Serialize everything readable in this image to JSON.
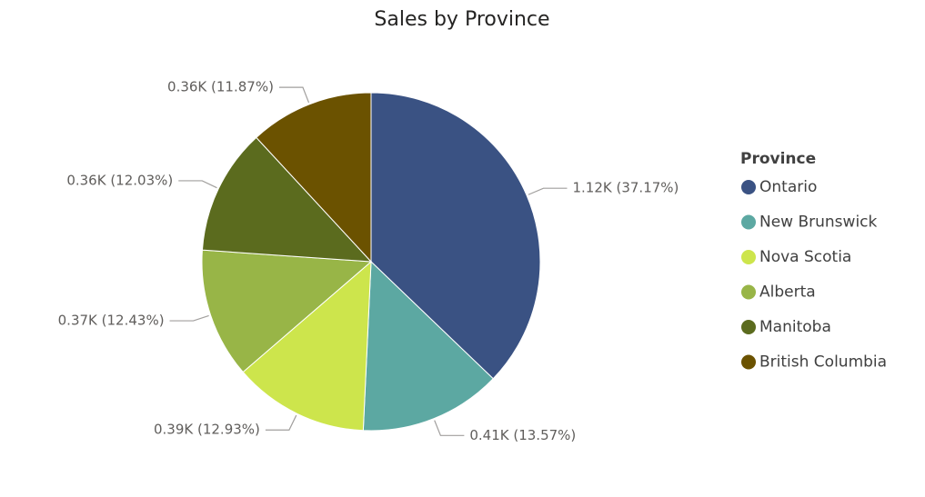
{
  "chart_data": {
    "type": "pie",
    "title": "Sales by Province",
    "legend_title": "Province",
    "legend_position": "right",
    "slices": [
      {
        "label": "Ontario",
        "value": 1.12,
        "percent": 37.17,
        "data_label": "1.12K (37.17%)",
        "color": "#3a5283"
      },
      {
        "label": "New Brunswick",
        "value": 0.41,
        "percent": 13.57,
        "data_label": "0.41K (13.57%)",
        "color": "#5ca8a2"
      },
      {
        "label": "Nova Scotia",
        "value": 0.39,
        "percent": 12.93,
        "data_label": "0.39K (12.93%)",
        "color": "#cde54c"
      },
      {
        "label": "Alberta",
        "value": 0.37,
        "percent": 12.43,
        "data_label": "0.37K (12.43%)",
        "color": "#98b547"
      },
      {
        "label": "Manitoba",
        "value": 0.36,
        "percent": 12.03,
        "data_label": "0.36K (12.03%)",
        "color": "#5b6b1e"
      },
      {
        "label": "British Columbia",
        "value": 0.36,
        "percent": 11.87,
        "data_label": "0.36K (11.87%)",
        "color": "#6b5200"
      }
    ]
  }
}
